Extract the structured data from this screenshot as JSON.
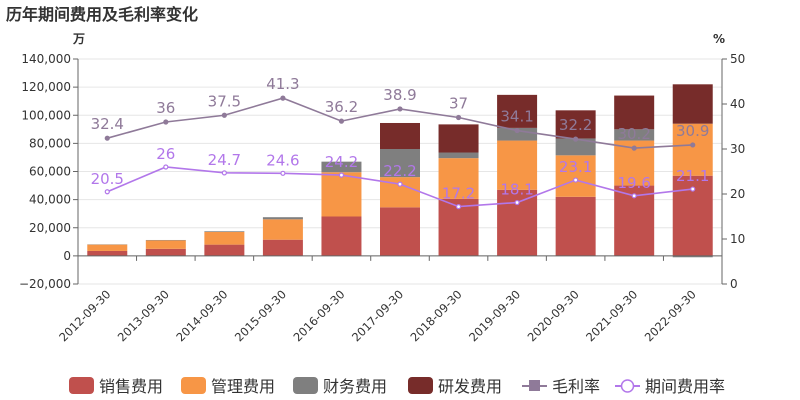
{
  "title": "历年期间费用及毛利率变化",
  "left_unit": "万",
  "right_unit": "%",
  "colors": {
    "sales": "#c0504d",
    "mgmt": "#f79646",
    "finance": "#7f7f7f",
    "rnd": "#772c2a",
    "gross": "#8f7a99",
    "period": "#b277ea"
  },
  "chart_data": {
    "type": "bar",
    "stacked": true,
    "categories": [
      "2012-09-30",
      "2013-09-30",
      "2014-09-30",
      "2015-09-30",
      "2016-09-30",
      "2017-09-30",
      "2018-09-30",
      "2019-09-30",
      "2020-09-30",
      "2021-09-30",
      "2022-09-30"
    ],
    "series": [
      {
        "name": "销售费用",
        "key": "sales",
        "axis": "left",
        "values": [
          3500,
          5000,
          8000,
          11500,
          28000,
          34500,
          40500,
          47000,
          42000,
          50000,
          57000
        ]
      },
      {
        "name": "管理费用",
        "key": "mgmt",
        "axis": "left",
        "values": [
          4500,
          6000,
          9000,
          14500,
          31500,
          21500,
          29000,
          35000,
          29500,
          32000,
          37000
        ]
      },
      {
        "name": "财务费用",
        "key": "finance",
        "axis": "left",
        "values": [
          200,
          300,
          500,
          1500,
          7500,
          20000,
          4000,
          9000,
          12000,
          8000,
          -1000
        ]
      },
      {
        "name": "研发费用",
        "key": "rnd",
        "axis": "left",
        "values": [
          0,
          0,
          0,
          0,
          0,
          18500,
          20000,
          23500,
          20000,
          24000,
          28000
        ]
      },
      {
        "name": "毛利率",
        "key": "gross",
        "axis": "right",
        "type": "line",
        "values": [
          32.4,
          36,
          37.5,
          41.3,
          36.2,
          38.9,
          37,
          34.1,
          32.2,
          30.2,
          30.9
        ]
      },
      {
        "name": "期间费用率",
        "key": "period",
        "axis": "right",
        "type": "line",
        "values": [
          20.5,
          26,
          24.7,
          24.6,
          24.2,
          22.2,
          17.2,
          18.1,
          23.1,
          19.6,
          21.1
        ]
      }
    ],
    "left_axis": {
      "range": [
        -20000,
        140000
      ],
      "ticks": [
        -20000,
        0,
        20000,
        40000,
        60000,
        80000,
        100000,
        120000,
        140000
      ],
      "tick_labels": [
        "−20,000",
        "0",
        "20,000",
        "40,000",
        "60,000",
        "80,000",
        "100,000",
        "120,000",
        "140,000"
      ]
    },
    "right_axis": {
      "range": [
        0,
        50
      ],
      "ticks": [
        0,
        10,
        20,
        30,
        40,
        50
      ],
      "tick_labels": [
        "0",
        "10",
        "20",
        "30",
        "40",
        "50"
      ]
    },
    "gross_labels": [
      "32.4",
      "36",
      "37.5",
      "41.3",
      "36.2",
      "38.9",
      "37",
      "34.1",
      "32.2",
      "30.2",
      "30.9"
    ],
    "period_labels": [
      "20.5",
      "26",
      "24.7",
      "24.6",
      "24.2",
      "22.2",
      "17.2",
      "18.1",
      "23.1",
      "19.6",
      "21.1"
    ],
    "grid": true,
    "legend_position": "bottom"
  }
}
